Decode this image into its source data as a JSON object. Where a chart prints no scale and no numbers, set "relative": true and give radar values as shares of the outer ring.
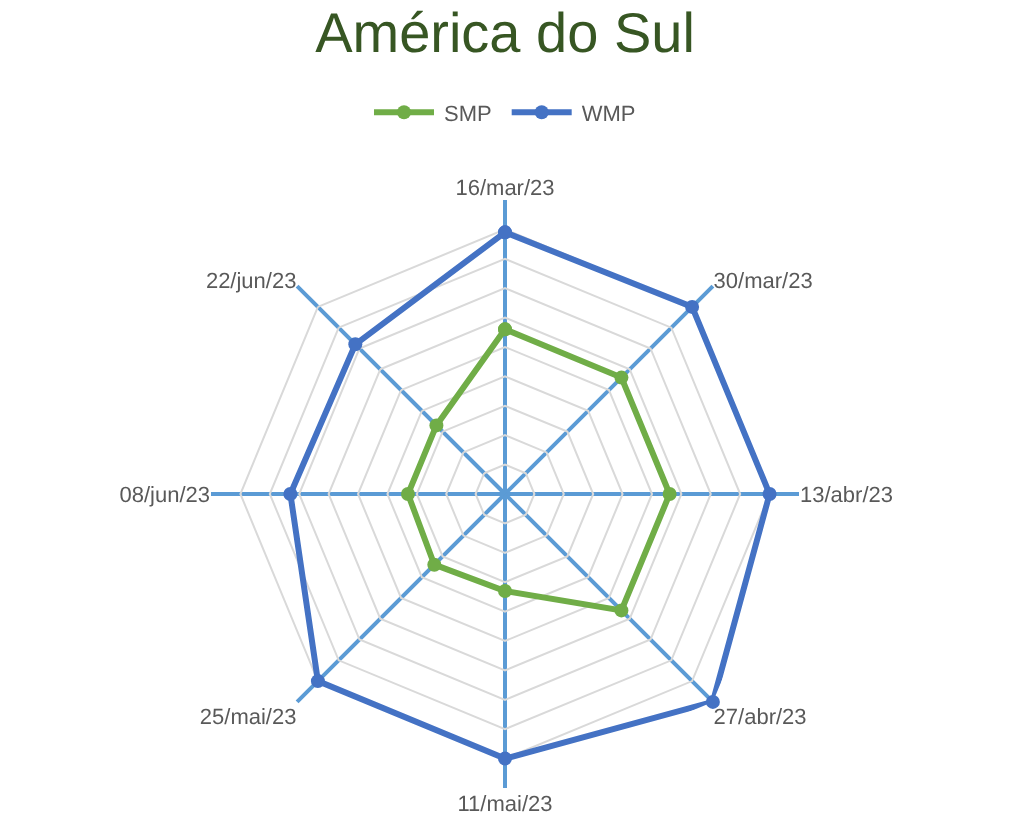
{
  "chart_data": {
    "type": "radar",
    "title": "América do Sul",
    "relative": true,
    "grid": true,
    "legend": "top",
    "marker": "circle",
    "line_style": "solid",
    "categories": [
      "16/mar/23",
      "30/mar/23",
      "13/abr/23",
      "27/abr/23",
      "11/mai/23",
      "25/mai/23",
      "08/jun/23",
      "22/jun/23"
    ],
    "series": [
      {
        "name": "SMP",
        "color": "#70ad47",
        "values": [
          0.56,
          0.56,
          0.56,
          0.56,
          0.33,
          0.34,
          0.33,
          0.33
        ]
      },
      {
        "name": "WMP",
        "color": "#4472c4",
        "values": [
          0.89,
          0.9,
          0.9,
          1.0,
          0.9,
          0.9,
          0.73,
          0.72
        ]
      }
    ]
  }
}
